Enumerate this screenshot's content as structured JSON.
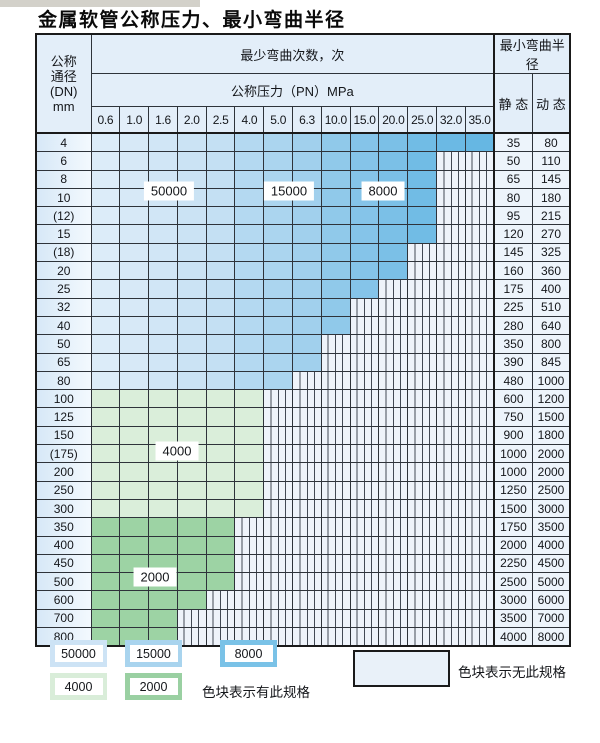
{
  "title": "金属软管公称压力、最小弯曲半径",
  "table": {
    "dn_header_lines": [
      "公称",
      "通径",
      "(DN)",
      "mm"
    ],
    "bend_cycles_header": "最少弯曲次数，次",
    "pressure_header": "公称压力（PN）MPa",
    "radius_header": "最小弯曲半径",
    "static_header": "静 态",
    "dynamic_header": "动 态",
    "pressure_columns": [
      "0.6",
      "1.0",
      "1.6",
      "2.0",
      "2.5",
      "4.0",
      "5.0",
      "6.3",
      "10.0",
      "15.0",
      "20.0",
      "25.0",
      "32.0",
      "35.0"
    ],
    "rows": [
      {
        "dn": "4",
        "static": "35",
        "dynamic": "80",
        "group": "blue",
        "colored": 14
      },
      {
        "dn": "6",
        "static": "50",
        "dynamic": "110",
        "group": "blue",
        "colored": 12
      },
      {
        "dn": "8",
        "static": "65",
        "dynamic": "145",
        "group": "blue",
        "colored": 12
      },
      {
        "dn": "10",
        "static": "80",
        "dynamic": "180",
        "group": "blue",
        "colored": 12
      },
      {
        "dn": "(12)",
        "static": "95",
        "dynamic": "215",
        "group": "blue",
        "colored": 12
      },
      {
        "dn": "15",
        "static": "120",
        "dynamic": "270",
        "group": "blue",
        "colored": 12
      },
      {
        "dn": "(18)",
        "static": "145",
        "dynamic": "325",
        "group": "blue",
        "colored": 11
      },
      {
        "dn": "20",
        "static": "160",
        "dynamic": "360",
        "group": "blue",
        "colored": 11
      },
      {
        "dn": "25",
        "static": "175",
        "dynamic": "400",
        "group": "blue",
        "colored": 10
      },
      {
        "dn": "32",
        "static": "225",
        "dynamic": "510",
        "group": "blue",
        "colored": 9
      },
      {
        "dn": "40",
        "static": "280",
        "dynamic": "640",
        "group": "blue",
        "colored": 9
      },
      {
        "dn": "50",
        "static": "350",
        "dynamic": "800",
        "group": "blue",
        "colored": 8
      },
      {
        "dn": "65",
        "static": "390",
        "dynamic": "845",
        "group": "blue",
        "colored": 8
      },
      {
        "dn": "80",
        "static": "480",
        "dynamic": "1000",
        "group": "blue",
        "colored": 7
      },
      {
        "dn": "100",
        "static": "600",
        "dynamic": "1200",
        "group": "green4000",
        "colored": 6
      },
      {
        "dn": "125",
        "static": "750",
        "dynamic": "1500",
        "group": "green4000",
        "colored": 6
      },
      {
        "dn": "150",
        "static": "900",
        "dynamic": "1800",
        "group": "green4000",
        "colored": 6
      },
      {
        "dn": "(175)",
        "static": "1000",
        "dynamic": "2000",
        "group": "green4000",
        "colored": 6
      },
      {
        "dn": "200",
        "static": "1000",
        "dynamic": "2000",
        "group": "green4000",
        "colored": 6
      },
      {
        "dn": "250",
        "static": "1250",
        "dynamic": "2500",
        "group": "green4000",
        "colored": 6
      },
      {
        "dn": "300",
        "static": "1500",
        "dynamic": "3000",
        "group": "green4000",
        "colored": 6
      },
      {
        "dn": "350",
        "static": "1750",
        "dynamic": "3500",
        "group": "green2000",
        "colored": 5
      },
      {
        "dn": "400",
        "static": "2000",
        "dynamic": "4000",
        "group": "green2000",
        "colored": 5
      },
      {
        "dn": "450",
        "static": "2250",
        "dynamic": "4500",
        "group": "green2000",
        "colored": 5
      },
      {
        "dn": "500",
        "static": "2500",
        "dynamic": "5000",
        "group": "green2000",
        "colored": 5
      },
      {
        "dn": "600",
        "static": "3000",
        "dynamic": "6000",
        "group": "green2000",
        "colored": 4
      },
      {
        "dn": "700",
        "static": "3500",
        "dynamic": "7000",
        "group": "green2000",
        "colored": 3
      },
      {
        "dn": "800",
        "static": "4000",
        "dynamic": "8000",
        "group": "green2000",
        "colored": 3
      }
    ]
  },
  "region_labels": {
    "r50000": "50000",
    "r15000": "15000",
    "r8000": "8000",
    "r4000": "4000",
    "r2000": "2000"
  },
  "colors": {
    "blue_ramp": [
      "#dcecf9",
      "#d7e9f7",
      "#d1e6f6",
      "#cbe3f4",
      "#c4e0f3",
      "#b4d9f1",
      "#abd5ef",
      "#a1d0ed",
      "#90c9ea",
      "#85c4e9",
      "#7bc0e7",
      "#71bce5",
      "#6bb9e4",
      "#66b7e3"
    ],
    "green_4000": "#daeeda",
    "green_2000": "#9dd3a4",
    "no_spec_bg": "#eef3fa"
  },
  "legend": {
    "items": [
      {
        "label": "50000",
        "color": "#cde3f5"
      },
      {
        "label": "15000",
        "color": "#a9d4ee"
      },
      {
        "label": "8000",
        "color": "#7ac2e7"
      },
      {
        "label": "4000",
        "color": "#d9edd9"
      },
      {
        "label": "2000",
        "color": "#9ad0a2"
      }
    ],
    "has_spec_text": "色块表示有此规格",
    "no_spec_text": "色块表示无此规格"
  }
}
